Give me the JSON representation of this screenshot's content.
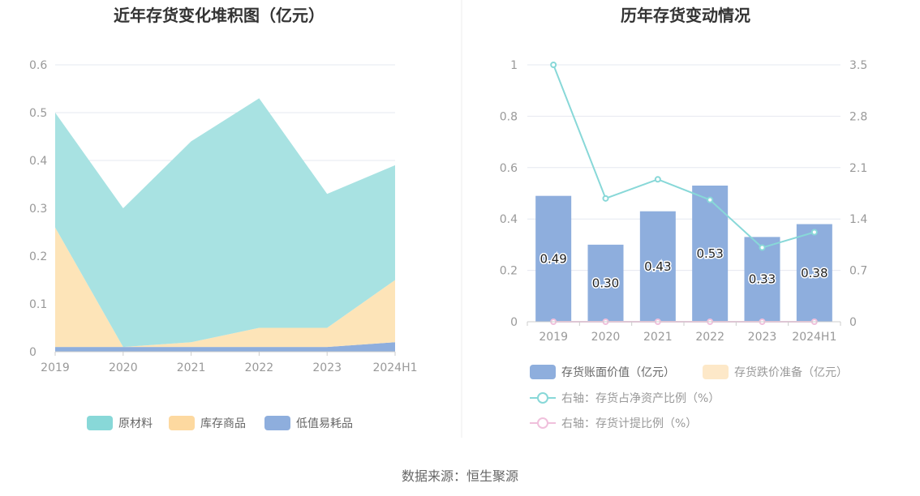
{
  "chart_data": [
    {
      "type": "area",
      "stacked": true,
      "title": "近年存货变化堆积图（亿元）",
      "categories": [
        "2019",
        "2020",
        "2021",
        "2022",
        "2023",
        "2024H1"
      ],
      "y_ticks": [
        "0",
        "0.1",
        "0.2",
        "0.3",
        "0.4",
        "0.5",
        "0.6"
      ],
      "ylim": [
        0,
        0.6
      ],
      "grid": true,
      "legend_position": "bottom",
      "series": [
        {
          "name": "低值易耗品",
          "color": "#8eaedd",
          "values": [
            0.01,
            0.01,
            0.01,
            0.01,
            0.01,
            0.02
          ]
        },
        {
          "name": "库存商品",
          "color": "#fde4b8",
          "values": [
            0.25,
            0.0,
            0.01,
            0.04,
            0.04,
            0.13
          ]
        },
        {
          "name": "原材料",
          "color": "#a8e2e2",
          "values": [
            0.24,
            0.29,
            0.42,
            0.48,
            0.28,
            0.24
          ]
        }
      ],
      "legend": [
        {
          "name": "原材料",
          "color": "#88d8d8"
        },
        {
          "name": "库存商品",
          "color": "#fdd9a0"
        },
        {
          "name": "低值易耗品",
          "color": "#8eaedd"
        }
      ]
    },
    {
      "type": "bar",
      "title": "历年存货变动情况",
      "categories": [
        "2019",
        "2020",
        "2021",
        "2022",
        "2023",
        "2024H1"
      ],
      "y_ticks": [
        "0",
        "0.2",
        "0.4",
        "0.6",
        "0.8",
        "1"
      ],
      "ylim": [
        0,
        1
      ],
      "y2_ticks": [
        "0",
        "0.7",
        "1.4",
        "2.1",
        "2.8",
        "3.5"
      ],
      "y2lim": [
        0,
        3.5
      ],
      "grid": true,
      "legend_position": "bottom",
      "series": [
        {
          "name": "存货账面价值（亿元）",
          "type": "bar",
          "color": "#8eaedd",
          "values": [
            0.49,
            0.3,
            0.43,
            0.53,
            0.33,
            0.38
          ],
          "labels": [
            "0.49",
            "0.30",
            "0.43",
            "0.53",
            "0.33",
            "0.38"
          ]
        },
        {
          "name": "存货跌价准备（亿元）",
          "type": "bar",
          "color": "#fde8c8",
          "values": [
            0,
            0,
            0,
            0,
            0,
            0
          ]
        },
        {
          "name": "右轴：存货占净资产比例（%）",
          "type": "line",
          "axis": "right",
          "color": "#88d8d8",
          "values": [
            3.5,
            1.68,
            1.94,
            1.66,
            1.01,
            1.22
          ]
        },
        {
          "name": "右轴：存货计提比例（%）",
          "type": "line",
          "axis": "right",
          "color": "#f0c0dc",
          "values": [
            0,
            0,
            0,
            0,
            0,
            0
          ]
        }
      ]
    }
  ],
  "source": "数据来源：恒生聚源"
}
